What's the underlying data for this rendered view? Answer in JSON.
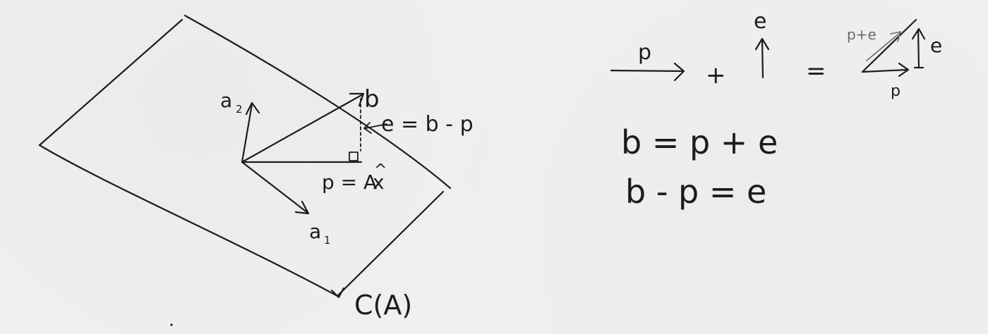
{
  "left_diagram": {
    "subspace_label": "C(A)",
    "vector_a1": "a",
    "vector_a1_sub": "1",
    "vector_a2": "a",
    "vector_a2_sub": "2",
    "vector_b": "b",
    "projection_label": "p = A",
    "projection_xhat": "x",
    "projection_hat": "^",
    "error_label": "e = b - p"
  },
  "right_diagram": {
    "p_arrow_label": "p",
    "plus": "+",
    "e_arrow_label": "e",
    "equals": "=",
    "triangle_hyp_label": "p+e",
    "triangle_e_label": "e",
    "triangle_p_label": "p",
    "equation_1": "b = p + e",
    "equation_2": "b - p = e"
  },
  "colors": {
    "ink": "#1c1c1c",
    "pencil": "#6b6b6b",
    "paper": "#f0f0f0"
  }
}
